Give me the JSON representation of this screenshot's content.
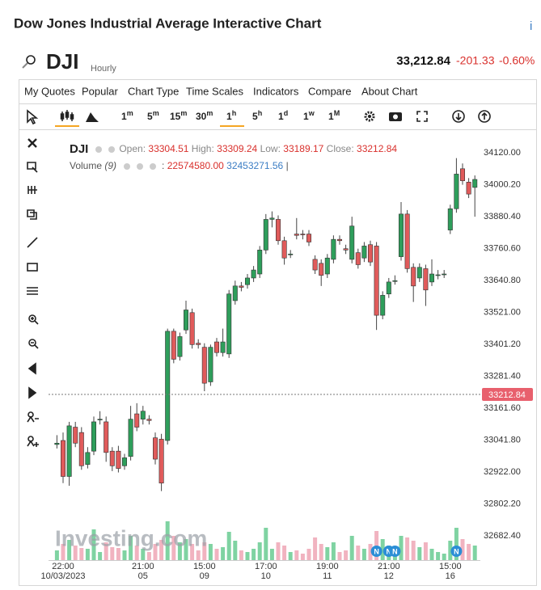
{
  "header": {
    "title": "Dow Jones Industrial Average Interactive Chart",
    "info": "i"
  },
  "quote": {
    "symbol": "DJI",
    "interval": "Hourly",
    "price": "33,212.84",
    "change": "-201.33",
    "change_pct": "-0.60%"
  },
  "menu": [
    "My Quotes",
    "Popular",
    "Chart Type",
    "Time Scales",
    "Indicators",
    "Compare",
    "About Chart"
  ],
  "time_scales": [
    {
      "n": "1",
      "u": "m"
    },
    {
      "n": "5",
      "u": "m"
    },
    {
      "n": "15",
      "u": "m"
    },
    {
      "n": "30",
      "u": "m"
    },
    {
      "n": "1",
      "u": "h"
    },
    {
      "n": "5",
      "u": "h"
    },
    {
      "n": "1",
      "u": "d"
    },
    {
      "n": "1",
      "u": "w"
    },
    {
      "n": "1",
      "u": "M"
    }
  ],
  "legend": {
    "symbol": "DJI",
    "open_label": "Open:",
    "open": "33304.51",
    "high_label": "High:",
    "high": "33309.24",
    "low_label": "Low:",
    "low": "33189.17",
    "close_label": "Close:",
    "close": "33212.84",
    "volume_label": "Volume",
    "volume_period": "(9)",
    "separator": ":",
    "volume_value": "22574580.00",
    "volume_ma": "32453271.56",
    "cursor": "|"
  },
  "watermark": "Investing.com",
  "chart_data": {
    "type": "candlestick",
    "categories": [
      null,
      "22:00",
      null,
      null,
      null,
      null,
      null,
      null,
      null,
      null,
      null,
      null,
      null,
      null,
      "21:00",
      null,
      null,
      null,
      null,
      null,
      null,
      null,
      null,
      null,
      "15:00",
      null,
      null,
      null,
      null,
      null,
      null,
      null,
      null,
      null,
      "17:00",
      null,
      null,
      null,
      null,
      null,
      null,
      null,
      null,
      null,
      "19:00",
      null,
      null,
      null,
      null,
      null,
      null,
      null,
      null,
      null,
      "21:00",
      null,
      null,
      null,
      null,
      null,
      null,
      null,
      null,
      null,
      "15:00",
      null,
      null,
      null,
      null
    ],
    "category_dates": [
      null,
      "10/03/2023",
      null,
      null,
      null,
      null,
      null,
      null,
      null,
      null,
      null,
      null,
      null,
      null,
      "05",
      null,
      null,
      null,
      null,
      null,
      null,
      null,
      null,
      null,
      "09",
      null,
      null,
      null,
      null,
      null,
      null,
      null,
      null,
      null,
      "10",
      null,
      null,
      null,
      null,
      null,
      null,
      null,
      null,
      null,
      "11",
      null,
      null,
      null,
      null,
      null,
      null,
      null,
      null,
      null,
      "12",
      null,
      null,
      null,
      null,
      null,
      null,
      null,
      null,
      null,
      "16",
      null,
      null,
      null,
      null
    ],
    "open": [
      33025,
      33040,
      32905,
      33090,
      33070,
      32950,
      33000,
      33120,
      33110,
      33000,
      33000,
      32945,
      32980,
      33140,
      33120,
      33120,
      33050,
      33045,
      33040,
      33450,
      33355,
      33455,
      33520,
      33405,
      33390,
      33260,
      33410,
      33370,
      33365,
      33565,
      33620,
      33625,
      33650,
      33665,
      33755,
      33870,
      33870,
      33790,
      33740,
      33815,
      33815,
      33815,
      33720,
      33705,
      33665,
      33720,
      33795,
      33760,
      33720,
      33745,
      33725,
      33775,
      33770,
      33510,
      33590,
      33640,
      33730,
      33890,
      33690,
      33650,
      33685,
      33635,
      33660,
      33665,
      33830,
      33910,
      34060,
      34010,
      33990
    ],
    "high": [
      33060,
      33070,
      33110,
      33110,
      33090,
      33015,
      33130,
      33150,
      33130,
      33015,
      33020,
      32990,
      33170,
      33180,
      33170,
      33135,
      33070,
      33065,
      33460,
      33460,
      33445,
      33565,
      33535,
      33420,
      33405,
      33400,
      33425,
      33460,
      33605,
      33640,
      33635,
      33665,
      33695,
      33770,
      33890,
      33900,
      33885,
      33805,
      33755,
      33875,
      33830,
      33830,
      33735,
      33720,
      33740,
      33810,
      33810,
      33775,
      33880,
      33760,
      33785,
      33790,
      33785,
      33600,
      33650,
      33660,
      33935,
      33905,
      33705,
      33705,
      33700,
      33720,
      33680,
      33680,
      33925,
      34100,
      34080,
      34025,
      34035
    ],
    "low": [
      33010,
      32880,
      32870,
      33015,
      32930,
      32935,
      32985,
      33100,
      32960,
      32925,
      32920,
      32930,
      32965,
      33075,
      33100,
      33100,
      32950,
      32850,
      33025,
      33330,
      33340,
      33440,
      33385,
      33385,
      33225,
      33245,
      33355,
      33355,
      33350,
      33550,
      33600,
      33610,
      33635,
      33650,
      33740,
      33840,
      33775,
      33700,
      33725,
      33795,
      33795,
      33770,
      33665,
      33620,
      33650,
      33705,
      33775,
      33740,
      33705,
      33685,
      33710,
      33695,
      33455,
      33495,
      33575,
      33625,
      33715,
      33670,
      33560,
      33635,
      33545,
      33620,
      33645,
      33650,
      33815,
      33895,
      34000,
      33950,
      33880
    ],
    "close": [
      33030,
      32905,
      33095,
      33030,
      32945,
      32995,
      33110,
      33120,
      32995,
      32945,
      32935,
      32975,
      33120,
      33090,
      33150,
      33115,
      32970,
      32880,
      33450,
      33345,
      33430,
      33530,
      33400,
      33400,
      33255,
      33390,
      33370,
      33410,
      33590,
      33620,
      33615,
      33650,
      33680,
      33755,
      33870,
      33875,
      33790,
      33725,
      33740,
      33810,
      33812,
      33785,
      33680,
      33660,
      33725,
      33795,
      33790,
      33755,
      33845,
      33700,
      33770,
      33710,
      33510,
      33585,
      33635,
      33640,
      33890,
      33685,
      33620,
      33690,
      33605,
      33665,
      33662,
      33665,
      33910,
      34040,
      34015,
      33965,
      34020
    ],
    "volume": [
      12,
      20,
      25,
      18,
      15,
      14,
      38,
      10,
      22,
      16,
      15,
      12,
      30,
      18,
      14,
      10,
      20,
      25,
      48,
      30,
      22,
      26,
      20,
      12,
      22,
      20,
      14,
      16,
      35,
      24,
      12,
      10,
      14,
      22,
      40,
      14,
      22,
      18,
      10,
      12,
      8,
      14,
      28,
      20,
      16,
      22,
      10,
      12,
      30,
      18,
      14,
      20,
      36,
      26,
      18,
      10,
      30,
      28,
      24,
      16,
      22,
      14,
      10,
      8,
      24,
      40,
      26,
      20,
      18
    ],
    "volume_ylim": [
      0,
      100
    ],
    "up_color": "#2e9e5b",
    "down_color": "#e05b5b",
    "up_volume_color": "#7fd3a2",
    "down_volume_color": "#f1b3c0",
    "ylim": [
      32591,
      34199
    ],
    "yticks": [
      {
        "value": 34120,
        "label": "34120.00"
      },
      {
        "value": 34000.2,
        "label": "34000.20"
      },
      {
        "value": 33880.4,
        "label": "33880.40"
      },
      {
        "value": 33760.6,
        "label": "33760.60"
      },
      {
        "value": 33640.8,
        "label": "33640.80"
      },
      {
        "value": 33521,
        "label": "33521.00"
      },
      {
        "value": 33401.2,
        "label": "33401.20"
      },
      {
        "value": 33281.4,
        "label": "33281.40"
      },
      {
        "value": 33161.6,
        "label": "33161.60"
      },
      {
        "value": 33041.8,
        "label": "33041.80"
      },
      {
        "value": 32922,
        "label": "32922.00"
      },
      {
        "value": 32802.2,
        "label": "32802.20"
      },
      {
        "value": 32682.4,
        "label": "32682.40"
      }
    ],
    "last_price": {
      "value": 33212.84,
      "label": "33212.84"
    },
    "events": [
      {
        "label": "N",
        "index": 52
      },
      {
        "label": "N",
        "index": 54
      },
      {
        "label": "N",
        "index": 55
      },
      {
        "label": "N",
        "index": 65
      }
    ],
    "grid": false
  }
}
